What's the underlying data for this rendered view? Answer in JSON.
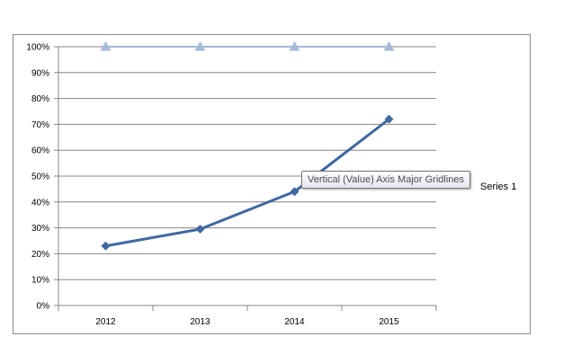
{
  "chart_data": {
    "type": "line",
    "categories": [
      "2012",
      "2013",
      "2014",
      "2015"
    ],
    "ylim": [
      0,
      1
    ],
    "y_ticks": [
      0,
      0.1,
      0.2,
      0.3,
      0.4,
      0.5,
      0.6,
      0.7,
      0.8,
      0.9,
      1.0
    ],
    "y_tick_labels": [
      "0%",
      "10%",
      "20%",
      "30%",
      "40%",
      "50%",
      "60%",
      "70%",
      "80%",
      "90%",
      "100%"
    ],
    "grid": true,
    "legend_position": "right",
    "series": [
      {
        "name": "Series 1",
        "values": [
          0.23,
          0.295,
          0.44,
          0.72
        ],
        "color": "#4068a1",
        "marker": "diamond"
      },
      {
        "values": [
          1.0,
          1.0,
          1.0,
          1.0
        ],
        "color": "#a6bad9",
        "marker": "triangle"
      }
    ]
  },
  "tooltip": {
    "text": "Vertical (Value) Axis Major Gridlines"
  }
}
